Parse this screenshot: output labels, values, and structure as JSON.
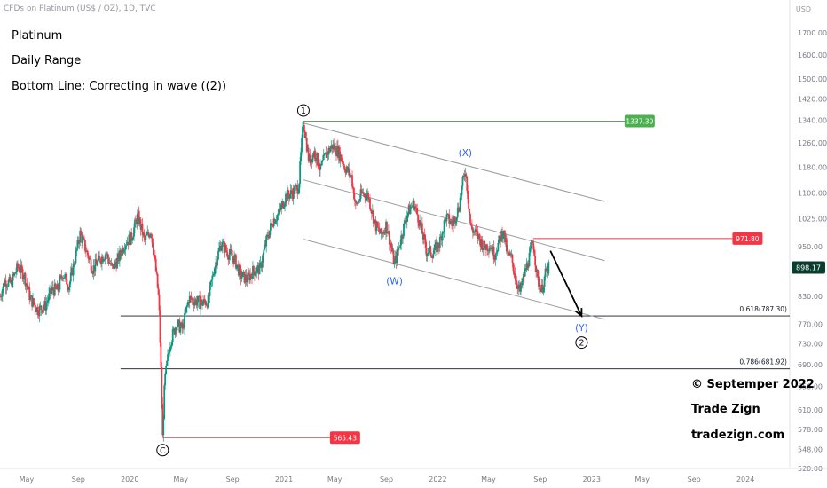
{
  "header": {
    "symbol_line": "CFDs on Platinum (US$ / OZ), 1D, TVC",
    "currency": "USD"
  },
  "notes": {
    "line1": "Platinum",
    "line2": "Daily Range",
    "line3": "Bottom Line: Correcting in wave ((2))"
  },
  "footer": {
    "copyright": "© Septemper 2022",
    "brand": "Trade Zign",
    "site": "tradezign.com"
  },
  "colors": {
    "up": "#089981",
    "down": "#f23645",
    "wave_label": "#2962ff",
    "green_tag": "#4caf50",
    "red_tag": "#f23645",
    "last_price_tag": "#0b3d2e"
  },
  "chart_data": {
    "type": "candlestick",
    "y_scale": "log",
    "ylim": [
      520,
      1780
    ],
    "y_ticks": [
      "1700.00",
      "1600.00",
      "1500.00",
      "1420.00",
      "1340.00",
      "1260.00",
      "1180.00",
      "1100.00",
      "1025.00",
      "950.00",
      "890.00",
      "830.00",
      "770.00",
      "730.00",
      "690.00",
      "650.00",
      "610.00",
      "578.00",
      "548.00",
      "520.00"
    ],
    "x_ticks": [
      "May",
      "Sep",
      "2020",
      "May",
      "Sep",
      "2021",
      "May",
      "Sep",
      "2022",
      "May",
      "Sep",
      "2023",
      "May",
      "Sep",
      "2024"
    ],
    "x_range": [
      "2019-02-27",
      "2024-04-15"
    ],
    "x_tick_dates": [
      "2019-05-01",
      "2019-09-01",
      "2020-01-01",
      "2020-05-01",
      "2020-09-01",
      "2021-01-01",
      "2021-05-01",
      "2021-09-01",
      "2022-01-01",
      "2022-05-01",
      "2022-09-01",
      "2023-01-01",
      "2023-05-01",
      "2023-09-01",
      "2024-01-01"
    ],
    "price_path": [
      [
        "2019-02-27",
        830
      ],
      [
        "2019-03-10",
        865
      ],
      [
        "2019-03-25",
        860
      ],
      [
        "2019-04-10",
        900
      ],
      [
        "2019-04-25",
        880
      ],
      [
        "2019-05-10",
        825
      ],
      [
        "2019-05-28",
        800
      ],
      [
        "2019-06-15",
        810
      ],
      [
        "2019-06-30",
        845
      ],
      [
        "2019-07-15",
        845
      ],
      [
        "2019-07-25",
        885
      ],
      [
        "2019-08-10",
        855
      ],
      [
        "2019-08-25",
        925
      ],
      [
        "2019-09-05",
        985
      ],
      [
        "2019-09-18",
        945
      ],
      [
        "2019-10-05",
        895
      ],
      [
        "2019-10-20",
        915
      ],
      [
        "2019-11-05",
        935
      ],
      [
        "2019-11-20",
        895
      ],
      [
        "2019-12-05",
        920
      ],
      [
        "2019-12-20",
        960
      ],
      [
        "2020-01-05",
        975
      ],
      [
        "2020-01-20",
        1035
      ],
      [
        "2020-02-05",
        965
      ],
      [
        "2020-02-20",
        995
      ],
      [
        "2020-03-02",
        900
      ],
      [
        "2020-03-10",
        820
      ],
      [
        "2020-03-19",
        565.43
      ],
      [
        "2020-03-24",
        660
      ],
      [
        "2020-04-05",
        730
      ],
      [
        "2020-04-20",
        770
      ],
      [
        "2020-05-05",
        760
      ],
      [
        "2020-05-20",
        825
      ],
      [
        "2020-06-05",
        820
      ],
      [
        "2020-06-20",
        815
      ],
      [
        "2020-07-05",
        820
      ],
      [
        "2020-07-20",
        900
      ],
      [
        "2020-08-05",
        960
      ],
      [
        "2020-08-20",
        935
      ],
      [
        "2020-09-05",
        920
      ],
      [
        "2020-09-20",
        880
      ],
      [
        "2020-10-05",
        870
      ],
      [
        "2020-10-20",
        890
      ],
      [
        "2020-11-05",
        895
      ],
      [
        "2020-11-20",
        965
      ],
      [
        "2020-12-05",
        1020
      ],
      [
        "2020-12-20",
        1040
      ],
      [
        "2021-01-05",
        1090
      ],
      [
        "2021-01-20",
        1100
      ],
      [
        "2021-02-05",
        1120
      ],
      [
        "2021-02-16",
        1337.3
      ],
      [
        "2021-03-01",
        1200
      ],
      [
        "2021-03-15",
        1230
      ],
      [
        "2021-03-28",
        1170
      ],
      [
        "2021-04-10",
        1220
      ],
      [
        "2021-04-25",
        1250
      ],
      [
        "2021-05-10",
        1230
      ],
      [
        "2021-05-25",
        1180
      ],
      [
        "2021-06-10",
        1150
      ],
      [
        "2021-06-20",
        1060
      ],
      [
        "2021-07-05",
        1100
      ],
      [
        "2021-07-20",
        1090
      ],
      [
        "2021-08-05",
        1010
      ],
      [
        "2021-08-20",
        980
      ],
      [
        "2021-09-01",
        1010
      ],
      [
        "2021-09-20",
        905
      ],
      [
        "2021-10-05",
        970
      ],
      [
        "2021-10-20",
        1040
      ],
      [
        "2021-11-05",
        1070
      ],
      [
        "2021-11-20",
        1010
      ],
      [
        "2021-12-05",
        940
      ],
      [
        "2021-12-20",
        935
      ],
      [
        "2022-01-05",
        960
      ],
      [
        "2022-01-20",
        1030
      ],
      [
        "2022-02-05",
        1010
      ],
      [
        "2022-02-20",
        1060
      ],
      [
        "2022-03-07",
        1175
      ],
      [
        "2022-03-20",
        1000
      ],
      [
        "2022-04-05",
        980
      ],
      [
        "2022-04-20",
        950
      ],
      [
        "2022-05-05",
        955
      ],
      [
        "2022-05-15",
        930
      ],
      [
        "2022-05-25",
        960
      ],
      [
        "2022-06-05",
        995
      ],
      [
        "2022-06-15",
        930
      ],
      [
        "2022-06-25",
        920
      ],
      [
        "2022-07-05",
        870
      ],
      [
        "2022-07-15",
        840
      ],
      [
        "2022-07-25",
        880
      ],
      [
        "2022-08-05",
        920
      ],
      [
        "2022-08-15",
        965
      ],
      [
        "2022-08-25",
        870
      ],
      [
        "2022-09-05",
        845
      ],
      [
        "2022-09-15",
        890
      ],
      [
        "2022-09-22",
        898.17
      ]
    ],
    "last_price": 898.17,
    "wave_labels": [
      {
        "text": "1",
        "style": "circled",
        "date": "2021-02-16",
        "price": 1337.3
      },
      {
        "text": "C",
        "style": "circled",
        "date": "2020-03-19",
        "price": 565.43
      },
      {
        "text": "(X)",
        "style": "blue",
        "date": "2022-03-07",
        "price": 1175
      },
      {
        "text": "(W)",
        "style": "blue",
        "date": "2021-09-20",
        "price": 905
      },
      {
        "text": "(Y)",
        "style": "blue",
        "date": "2022-12-08",
        "price": 787.3
      },
      {
        "text": "2",
        "style": "circled",
        "date": "2022-12-08",
        "price": 787.3
      }
    ],
    "price_tags": [
      {
        "label": "1337.30",
        "value": 1337.3,
        "color": "green",
        "from": "2021-02-16",
        "to": "2023-03-20"
      },
      {
        "label": "971.80",
        "value": 971.8,
        "color": "red",
        "from": "2022-08-15",
        "to": "2023-12-01"
      },
      {
        "label": "565.43",
        "value": 565.43,
        "color": "red",
        "from": "2020-03-19",
        "to": "2021-04-20"
      }
    ],
    "fib_levels": [
      {
        "label": "0.618(787.30)",
        "value": 787.3
      },
      {
        "label": "0.786(681.92)",
        "value": 681.92
      }
    ],
    "fib_line_start": "2019-12-10",
    "channel_lines": [
      {
        "from": [
          "2021-02-16",
          1330
        ],
        "to": [
          "2023-02-01",
          1075
        ]
      },
      {
        "from": [
          "2021-02-16",
          1140
        ],
        "to": [
          "2023-02-01",
          915
        ]
      },
      {
        "from": [
          "2021-02-16",
          970
        ],
        "to": [
          "2023-02-01",
          780
        ]
      }
    ],
    "projection_arrow": {
      "from": [
        "2022-09-25",
        940
      ],
      "to": [
        "2022-12-08",
        787.3
      ]
    }
  }
}
